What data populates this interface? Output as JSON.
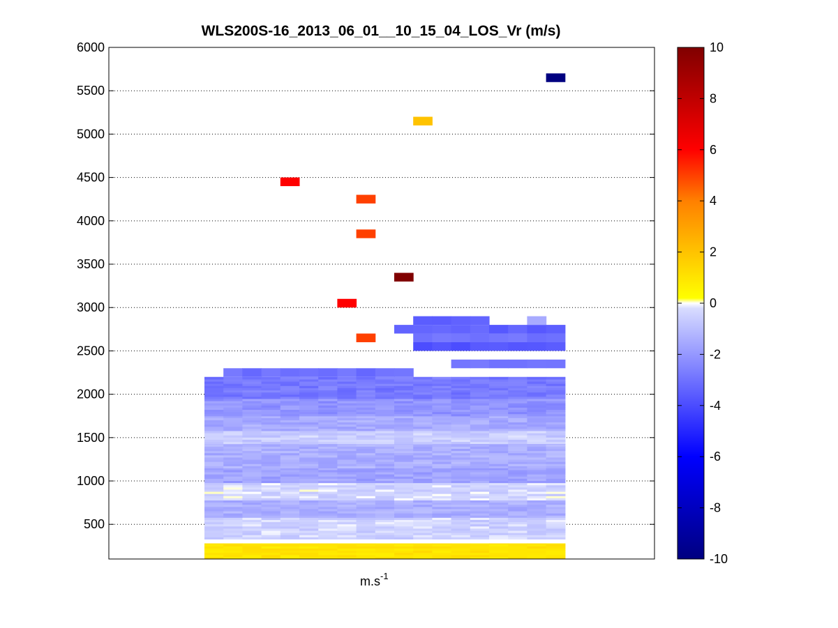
{
  "chart_data": {
    "type": "heatmap",
    "title": "WLS200S-16_2013_06_01__10_15_04_LOS_Vr (m/s)",
    "xlabel": "m.s",
    "xlabel_superscript": "-1",
    "ylabel": "",
    "ylim": [
      100,
      6000
    ],
    "yticks": [
      500,
      1000,
      1500,
      2000,
      2500,
      3000,
      3500,
      4000,
      4500,
      5000,
      5500,
      6000
    ],
    "grid": "horizontal dotted",
    "colorbar": {
      "clim": [
        -10,
        10
      ],
      "ticks": [
        -10,
        -8,
        -6,
        -4,
        -2,
        0,
        2,
        4,
        6,
        8,
        10
      ],
      "colors": {
        "min": "#000080",
        "blue": "#0000ff",
        "zero_low": "#d8dcff",
        "zero": "#ffffff",
        "zero_high": "#ffff00",
        "orange": "#ff8000",
        "red": "#ff0000",
        "max": "#800000"
      }
    },
    "x_columns": 19,
    "y_bin_height": 100,
    "isolated_cells": [
      {
        "x": 18,
        "y": 5650,
        "value": -10
      },
      {
        "x": 11,
        "y": 5150,
        "value": 2
      },
      {
        "x": 4,
        "y": 4450,
        "value": 6
      },
      {
        "x": 8,
        "y": 4250,
        "value": 5
      },
      {
        "x": 8,
        "y": 3850,
        "value": 5
      },
      {
        "x": 10,
        "y": 3350,
        "value": 10
      },
      {
        "x": 7,
        "y": 3050,
        "value": 6
      },
      {
        "x": 8,
        "y": 2650,
        "value": 5
      }
    ],
    "profile_bands": [
      {
        "y0": 100,
        "y1": 280,
        "value": 1.0
      },
      {
        "y0": 330,
        "y1": 580,
        "value": -0.5
      },
      {
        "y0": 580,
        "y1": 780,
        "value": -1.4
      },
      {
        "y0": 780,
        "y1": 980,
        "value": -0.4
      },
      {
        "y0": 980,
        "y1": 1150,
        "value": -1.7
      },
      {
        "y0": 1150,
        "y1": 1430,
        "value": -1.4
      },
      {
        "y0": 1430,
        "y1": 1580,
        "value": -0.6
      },
      {
        "y0": 1580,
        "y1": 1750,
        "value": -1.5
      },
      {
        "y0": 1750,
        "y1": 1950,
        "value": -2.1
      },
      {
        "y0": 1950,
        "y1": 2200,
        "value": -2.8
      }
    ],
    "upper_layer": [
      {
        "x0": 1,
        "x1": 10,
        "y0": 2200,
        "y1": 2300,
        "value": -3.0
      },
      {
        "x0": 13,
        "x1": 18,
        "y0": 2300,
        "y1": 2400,
        "value": -2.9
      },
      {
        "x0": 11,
        "x1": 14,
        "y0": 2800,
        "y1": 2900,
        "value": -3.6
      },
      {
        "x0": 10,
        "x1": 18,
        "y0": 2700,
        "y1": 2800,
        "value": -3.4
      },
      {
        "x0": 11,
        "x1": 18,
        "y0": 2600,
        "y1": 2700,
        "value": -3.0
      },
      {
        "x0": 11,
        "x1": 18,
        "y0": 2500,
        "y1": 2600,
        "value": -3.8
      },
      {
        "x0": 17,
        "x1": 17,
        "y0": 2800,
        "y1": 2900,
        "value": -1.6
      }
    ]
  }
}
